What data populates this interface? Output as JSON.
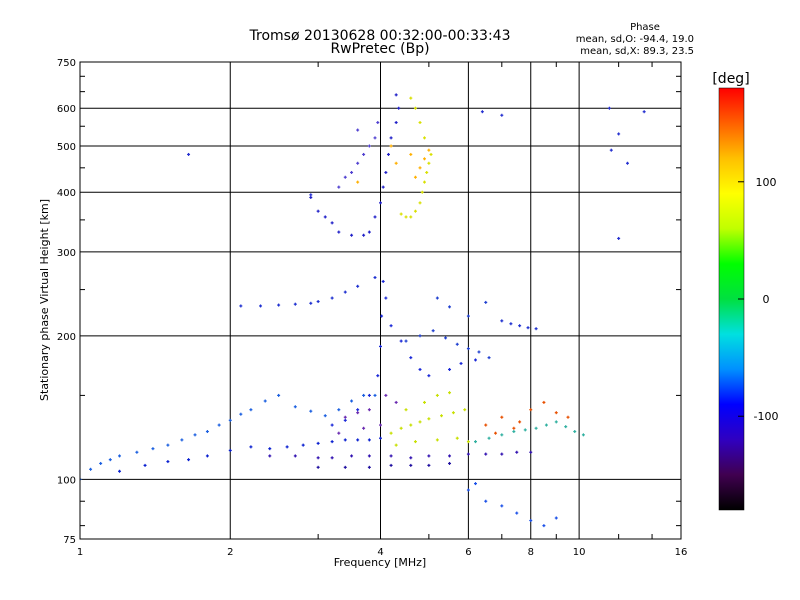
{
  "chart_data": {
    "type": "scatter",
    "title": "Tromsø 20130628 00:32:00-00:33:43",
    "subtitle": "RwPretec (Bp)",
    "phase_header": "Phase",
    "phase_stat_o": "mean, sd,O: -94.4, 19.0",
    "phase_stat_x": "mean, sd,X: 89.3, 23.5",
    "xlabel": "Frequency [MHz]",
    "ylabel": "Stationary phase Virtual Height [km]",
    "xscale": "log",
    "yscale": "log",
    "xlim": [
      1,
      16
    ],
    "ylim": [
      75,
      750
    ],
    "xtick_values": [
      1,
      2,
      4,
      6,
      8,
      10,
      16
    ],
    "xtick_labels": [
      "1",
      "2",
      "4",
      "6",
      "8",
      "10",
      "16"
    ],
    "ytick_values": [
      75,
      100,
      200,
      300,
      400,
      500,
      600,
      750
    ],
    "ytick_labels": [
      "75",
      "100",
      "200",
      "300",
      "400",
      "500",
      "600",
      "750"
    ],
    "grid": true,
    "colorbar": {
      "label": "[deg]",
      "range": [
        -180,
        180
      ],
      "tick_values": [
        100,
        0,
        -100
      ],
      "tick_labels": [
        "100",
        "0",
        "-100"
      ],
      "colors": [
        "#000000",
        "#400050",
        "#3000c0",
        "#0000ff",
        "#0090ff",
        "#00e0e0",
        "#00e040",
        "#00ff00",
        "#c0ff00",
        "#ffff00",
        "#ffc000",
        "#ff6000",
        "#ff0000"
      ]
    },
    "series": [
      {
        "color": "#1a5fe0",
        "points": [
          [
            1.0,
            100
          ],
          [
            1.05,
            105
          ],
          [
            1.1,
            108
          ],
          [
            1.15,
            110
          ],
          [
            1.2,
            112
          ],
          [
            1.3,
            114
          ],
          [
            1.4,
            116
          ],
          [
            1.5,
            118
          ],
          [
            1.6,
            121
          ],
          [
            1.7,
            124
          ],
          [
            1.8,
            126
          ],
          [
            1.9,
            130
          ],
          [
            2.0,
            133
          ],
          [
            2.1,
            137
          ],
          [
            2.2,
            140
          ],
          [
            2.35,
            146
          ],
          [
            2.5,
            150
          ],
          [
            2.7,
            142
          ],
          [
            2.9,
            139
          ],
          [
            3.1,
            136
          ],
          [
            3.3,
            140
          ],
          [
            3.5,
            146
          ],
          [
            3.7,
            150
          ],
          [
            3.9,
            150
          ]
        ]
      },
      {
        "color": "#0a20d0",
        "points": [
          [
            1.2,
            104
          ],
          [
            1.35,
            107
          ],
          [
            1.5,
            109
          ],
          [
            1.65,
            110
          ],
          [
            1.8,
            112
          ],
          [
            2.0,
            115
          ],
          [
            2.2,
            117
          ],
          [
            2.4,
            116
          ],
          [
            2.6,
            117
          ],
          [
            2.8,
            118
          ],
          [
            3.0,
            119
          ],
          [
            3.2,
            120
          ],
          [
            3.4,
            121
          ],
          [
            3.6,
            121
          ],
          [
            3.8,
            121
          ],
          [
            4.0,
            122
          ]
        ]
      },
      {
        "color": "#3010b0",
        "points": [
          [
            2.4,
            112
          ],
          [
            2.7,
            112
          ],
          [
            3.0,
            111
          ],
          [
            3.2,
            111
          ],
          [
            3.5,
            112
          ],
          [
            3.8,
            112
          ],
          [
            4.2,
            112
          ],
          [
            4.6,
            111
          ],
          [
            5.0,
            112
          ],
          [
            5.5,
            112
          ],
          [
            6.0,
            113
          ],
          [
            6.5,
            113
          ],
          [
            7.0,
            113
          ],
          [
            7.5,
            114
          ],
          [
            8.0,
            114
          ]
        ]
      },
      {
        "color": "#2010a0",
        "points": [
          [
            3.0,
            106
          ],
          [
            3.4,
            106
          ],
          [
            3.8,
            106
          ],
          [
            4.2,
            107
          ],
          [
            4.6,
            107
          ],
          [
            5.0,
            107
          ],
          [
            5.5,
            108
          ]
        ]
      },
      {
        "color": "#1a28d8",
        "points": [
          [
            3.2,
            130
          ],
          [
            3.4,
            133
          ],
          [
            3.6,
            140
          ],
          [
            3.8,
            150
          ],
          [
            3.95,
            165
          ],
          [
            4.0,
            190
          ],
          [
            4.02,
            220
          ],
          [
            4.05,
            260
          ],
          [
            4.1,
            240
          ],
          [
            4.2,
            210
          ],
          [
            4.4,
            195
          ],
          [
            4.6,
            180
          ],
          [
            4.8,
            170
          ],
          [
            5.0,
            165
          ],
          [
            5.5,
            170
          ],
          [
            5.8,
            175
          ],
          [
            6.2,
            178
          ]
        ]
      },
      {
        "color": "#1e30d0",
        "points": [
          [
            2.1,
            231
          ],
          [
            2.3,
            231
          ],
          [
            2.5,
            232
          ],
          [
            2.7,
            233
          ],
          [
            2.9,
            234
          ],
          [
            3.0,
            236
          ],
          [
            3.2,
            240
          ],
          [
            3.4,
            247
          ],
          [
            3.6,
            254
          ],
          [
            3.9,
            265
          ],
          [
            7.0,
            215
          ],
          [
            7.3,
            212
          ],
          [
            7.6,
            210
          ],
          [
            7.9,
            208
          ],
          [
            8.2,
            207
          ]
        ]
      },
      {
        "color": "#2020c8",
        "points": [
          [
            2.9,
            390
          ],
          [
            3.0,
            365
          ],
          [
            3.1,
            355
          ],
          [
            3.2,
            345
          ],
          [
            3.3,
            330
          ],
          [
            3.5,
            325
          ],
          [
            3.7,
            325
          ],
          [
            3.8,
            330
          ],
          [
            3.9,
            355
          ],
          [
            4.0,
            380
          ],
          [
            4.05,
            410
          ],
          [
            4.1,
            440
          ],
          [
            4.15,
            480
          ],
          [
            4.2,
            520
          ],
          [
            4.3,
            560
          ],
          [
            4.35,
            600
          ],
          [
            4.3,
            640
          ]
        ]
      },
      {
        "color": "#5040d0",
        "points": [
          [
            3.3,
            410
          ],
          [
            3.4,
            430
          ],
          [
            3.5,
            440
          ],
          [
            3.6,
            460
          ],
          [
            3.7,
            480
          ],
          [
            3.8,
            500
          ],
          [
            3.9,
            520
          ],
          [
            3.6,
            540
          ],
          [
            3.95,
            560
          ]
        ]
      },
      {
        "color": "#d8e000",
        "points": [
          [
            4.4,
            360
          ],
          [
            4.5,
            355
          ],
          [
            4.6,
            355
          ],
          [
            4.7,
            365
          ],
          [
            4.8,
            380
          ],
          [
            4.85,
            400
          ],
          [
            4.9,
            420
          ],
          [
            4.95,
            440
          ],
          [
            5.0,
            460
          ],
          [
            5.05,
            480
          ],
          [
            4.9,
            520
          ],
          [
            4.8,
            560
          ],
          [
            4.7,
            600
          ],
          [
            4.6,
            630
          ]
        ]
      },
      {
        "color": "#ffb000",
        "points": [
          [
            4.7,
            430
          ],
          [
            4.8,
            450
          ],
          [
            4.9,
            470
          ],
          [
            5.0,
            490
          ],
          [
            4.6,
            480
          ],
          [
            3.6,
            420
          ],
          [
            4.2,
            500
          ],
          [
            4.3,
            460
          ]
        ]
      },
      {
        "color": "#c8e000",
        "points": [
          [
            4.2,
            125
          ],
          [
            4.4,
            128
          ],
          [
            4.6,
            130
          ],
          [
            4.8,
            132
          ],
          [
            5.0,
            134
          ],
          [
            5.3,
            136
          ],
          [
            5.6,
            138
          ],
          [
            5.9,
            140
          ],
          [
            4.5,
            140
          ],
          [
            4.9,
            145
          ],
          [
            5.2,
            150
          ],
          [
            5.5,
            152
          ],
          [
            4.3,
            118
          ],
          [
            4.7,
            120
          ],
          [
            5.2,
            121
          ],
          [
            5.7,
            122
          ],
          [
            6.0,
            120
          ]
        ]
      },
      {
        "color": "#30b0a0",
        "points": [
          [
            6.2,
            120
          ],
          [
            6.6,
            122
          ],
          [
            7.0,
            124
          ],
          [
            7.4,
            126
          ],
          [
            7.8,
            127
          ],
          [
            8.2,
            128
          ],
          [
            8.6,
            130
          ],
          [
            9.0,
            132
          ],
          [
            9.4,
            129
          ],
          [
            9.8,
            126
          ],
          [
            10.2,
            124
          ]
        ]
      },
      {
        "color": "#e85000",
        "points": [
          [
            6.5,
            130
          ],
          [
            7.0,
            135
          ],
          [
            7.6,
            132
          ],
          [
            8.0,
            140
          ],
          [
            8.5,
            145
          ],
          [
            9.0,
            138
          ],
          [
            9.5,
            135
          ],
          [
            6.8,
            125
          ],
          [
            7.4,
            128
          ]
        ]
      },
      {
        "color": "#2040d0",
        "points": [
          [
            4.5,
            195
          ],
          [
            4.8,
            200
          ],
          [
            5.1,
            205
          ],
          [
            5.4,
            198
          ],
          [
            5.7,
            192
          ],
          [
            6.0,
            188
          ],
          [
            6.3,
            185
          ],
          [
            6.6,
            180
          ],
          [
            5.2,
            240
          ],
          [
            5.5,
            230
          ],
          [
            6.0,
            220
          ],
          [
            6.5,
            235
          ]
        ]
      },
      {
        "color": "#6a2ab0",
        "points": [
          [
            3.4,
            135
          ],
          [
            3.6,
            138
          ],
          [
            3.8,
            140
          ],
          [
            4.1,
            150
          ],
          [
            4.3,
            145
          ],
          [
            3.3,
            125
          ],
          [
            3.7,
            128
          ],
          [
            4.0,
            130
          ]
        ]
      },
      {
        "color": "#1a50e8",
        "points": [
          [
            6.0,
            95
          ],
          [
            6.5,
            90
          ],
          [
            7.0,
            88
          ],
          [
            7.5,
            85
          ],
          [
            8.0,
            82
          ],
          [
            8.5,
            80
          ],
          [
            9.0,
            83
          ],
          [
            6.2,
            98
          ]
        ]
      },
      {
        "color": "#2530d0",
        "points": [
          [
            1.65,
            480
          ],
          [
            2.9,
            395
          ],
          [
            11.5,
            600
          ],
          [
            11.6,
            490
          ],
          [
            12.0,
            320
          ],
          [
            12.5,
            460
          ],
          [
            12.0,
            530
          ],
          [
            13.5,
            590
          ],
          [
            6.4,
            590
          ],
          [
            7.0,
            580
          ]
        ]
      }
    ]
  }
}
